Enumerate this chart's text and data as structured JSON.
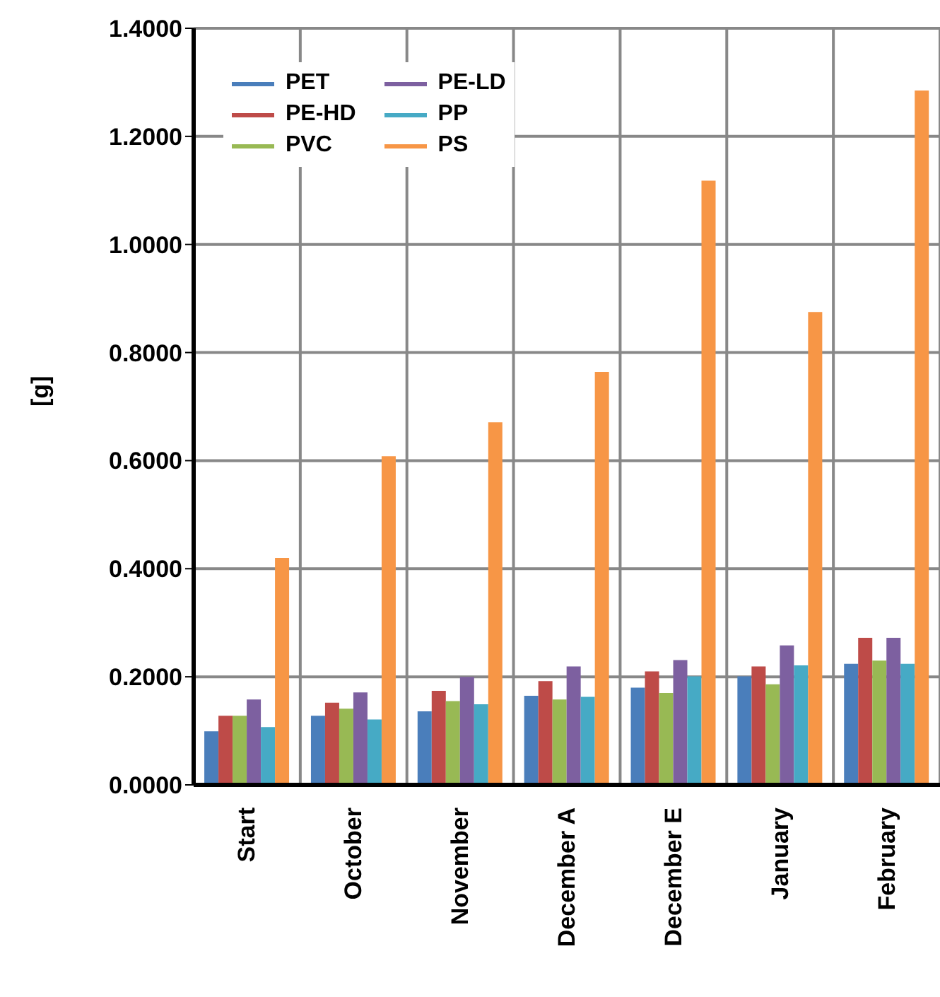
{
  "chart_data": {
    "type": "bar",
    "ylabel": "[g]",
    "categories": [
      "Start",
      "October",
      "November",
      "December A",
      "December E",
      "January",
      "February"
    ],
    "series": [
      {
        "name": "PET",
        "color": "#4a7ebb",
        "values": [
          0.099,
          0.128,
          0.136,
          0.165,
          0.18,
          0.201,
          0.224
        ]
      },
      {
        "name": "PE-HD",
        "color": "#be4b48",
        "values": [
          0.128,
          0.152,
          0.174,
          0.192,
          0.21,
          0.219,
          0.272
        ]
      },
      {
        "name": "PVC",
        "color": "#98b954",
        "values": [
          0.128,
          0.141,
          0.155,
          0.158,
          0.17,
          0.186,
          0.23
        ]
      },
      {
        "name": "PE-LD",
        "color": "#7d60a0",
        "values": [
          0.158,
          0.171,
          0.2,
          0.219,
          0.231,
          0.258,
          0.272
        ]
      },
      {
        "name": "PP",
        "color": "#46aac5",
        "values": [
          0.107,
          0.121,
          0.149,
          0.163,
          0.201,
          0.221,
          0.224
        ]
      },
      {
        "name": "PS",
        "color": "#f79646",
        "values": [
          0.42,
          0.608,
          0.671,
          0.764,
          1.118,
          0.875,
          1.285
        ]
      }
    ],
    "ylim": [
      0,
      1.4
    ],
    "yticks": [
      {
        "value": 0,
        "label": "0.0000"
      },
      {
        "value": 0.2,
        "label": "0.2000"
      },
      {
        "value": 0.4,
        "label": "0.4000"
      },
      {
        "value": 0.6,
        "label": "0.6000"
      },
      {
        "value": 0.8,
        "label": "0.8000"
      },
      {
        "value": 1.0,
        "label": "1.0000"
      },
      {
        "value": 1.2,
        "label": "1.2000"
      },
      {
        "value": 1.4,
        "label": "1.4000"
      }
    ],
    "grid": true,
    "legend": "top left"
  }
}
